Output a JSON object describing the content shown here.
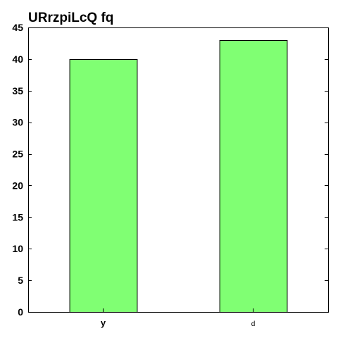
{
  "chart_data": {
    "type": "bar",
    "title": "URrzpiLcQ fq",
    "categories": [
      "y",
      "d"
    ],
    "values": [
      40,
      43
    ],
    "ylim": [
      0,
      45
    ],
    "yticks": [
      0,
      5,
      10,
      15,
      20,
      25,
      30,
      35,
      40,
      45
    ],
    "xlabel": "",
    "ylabel": "",
    "grid": false,
    "bar_color": "#80ff73",
    "bar_edge_color": "#000000"
  }
}
